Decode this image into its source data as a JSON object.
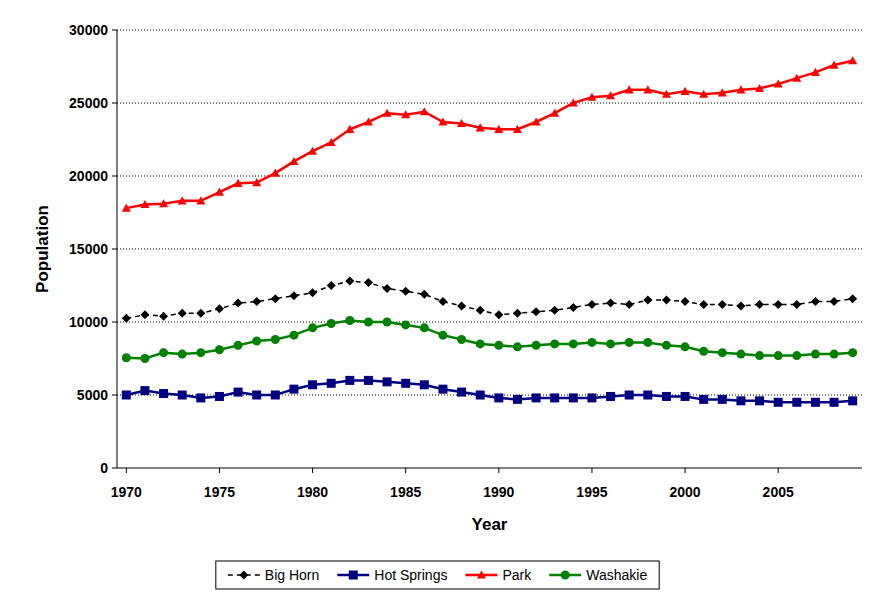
{
  "chart_data": {
    "type": "line",
    "x_label": "Year",
    "y_label": "Population",
    "x": [
      1970,
      1971,
      1972,
      1973,
      1974,
      1975,
      1976,
      1977,
      1978,
      1979,
      1980,
      1981,
      1982,
      1983,
      1984,
      1985,
      1986,
      1987,
      1988,
      1989,
      1990,
      1991,
      1992,
      1993,
      1994,
      1995,
      1996,
      1997,
      1998,
      1999,
      2000,
      2001,
      2002,
      2003,
      2004,
      2005,
      2006,
      2007,
      2008,
      2009
    ],
    "xlim": [
      1969.5,
      2009.5
    ],
    "xticks": [
      1970,
      1975,
      1980,
      1985,
      1990,
      1995,
      2000,
      2005
    ],
    "ylim": [
      0,
      30000
    ],
    "yticks": [
      0,
      5000,
      10000,
      15000,
      20000,
      25000,
      30000
    ],
    "grid": true,
    "legend": "bottom",
    "series": [
      {
        "name": "Big Horn",
        "color": "#000000",
        "marker": "diamond",
        "line_style": "dashed",
        "values": [
          10250,
          10500,
          10400,
          10600,
          10600,
          10900,
          11300,
          11400,
          11600,
          11800,
          12000,
          12500,
          12800,
          12700,
          12300,
          12100,
          11900,
          11400,
          11100,
          10800,
          10500,
          10600,
          10700,
          10800,
          11000,
          11200,
          11300,
          11200,
          11500,
          11500,
          11400,
          11200,
          11200,
          11100,
          11200,
          11200,
          11200,
          11400,
          11400,
          11600
        ]
      },
      {
        "name": "Hot Springs",
        "color": "#000080",
        "marker": "square",
        "line_style": "solid",
        "values": [
          5000,
          5300,
          5100,
          5000,
          4800,
          4900,
          5200,
          5000,
          5000,
          5400,
          5700,
          5800,
          6000,
          6000,
          5900,
          5800,
          5700,
          5400,
          5200,
          5000,
          4800,
          4700,
          4800,
          4800,
          4800,
          4800,
          4900,
          5000,
          5000,
          4900,
          4900,
          4700,
          4700,
          4600,
          4600,
          4500,
          4500,
          4500,
          4500,
          4600
        ]
      },
      {
        "name": "Park",
        "color": "#ff0000",
        "marker": "triangle",
        "line_style": "solid",
        "values": [
          17800,
          18050,
          18100,
          18300,
          18300,
          18900,
          19500,
          19550,
          20200,
          21000,
          21700,
          22300,
          23200,
          23700,
          24300,
          24200,
          24400,
          23700,
          23600,
          23300,
          23200,
          23200,
          23700,
          24300,
          25000,
          25400,
          25500,
          25900,
          25900,
          25600,
          25800,
          25600,
          25700,
          25900,
          26000,
          26300,
          26700,
          27100,
          27600,
          27900
        ]
      },
      {
        "name": "Washakie",
        "color": "#008000",
        "marker": "circle",
        "line_style": "solid",
        "values": [
          7550,
          7500,
          7900,
          7800,
          7900,
          8100,
          8400,
          8700,
          8800,
          9100,
          9600,
          9900,
          10100,
          10000,
          10000,
          9800,
          9600,
          9100,
          8800,
          8500,
          8400,
          8300,
          8400,
          8500,
          8500,
          8600,
          8500,
          8600,
          8600,
          8400,
          8300,
          8000,
          7900,
          7800,
          7700,
          7700,
          7700,
          7800,
          7800,
          7900
        ]
      }
    ]
  }
}
